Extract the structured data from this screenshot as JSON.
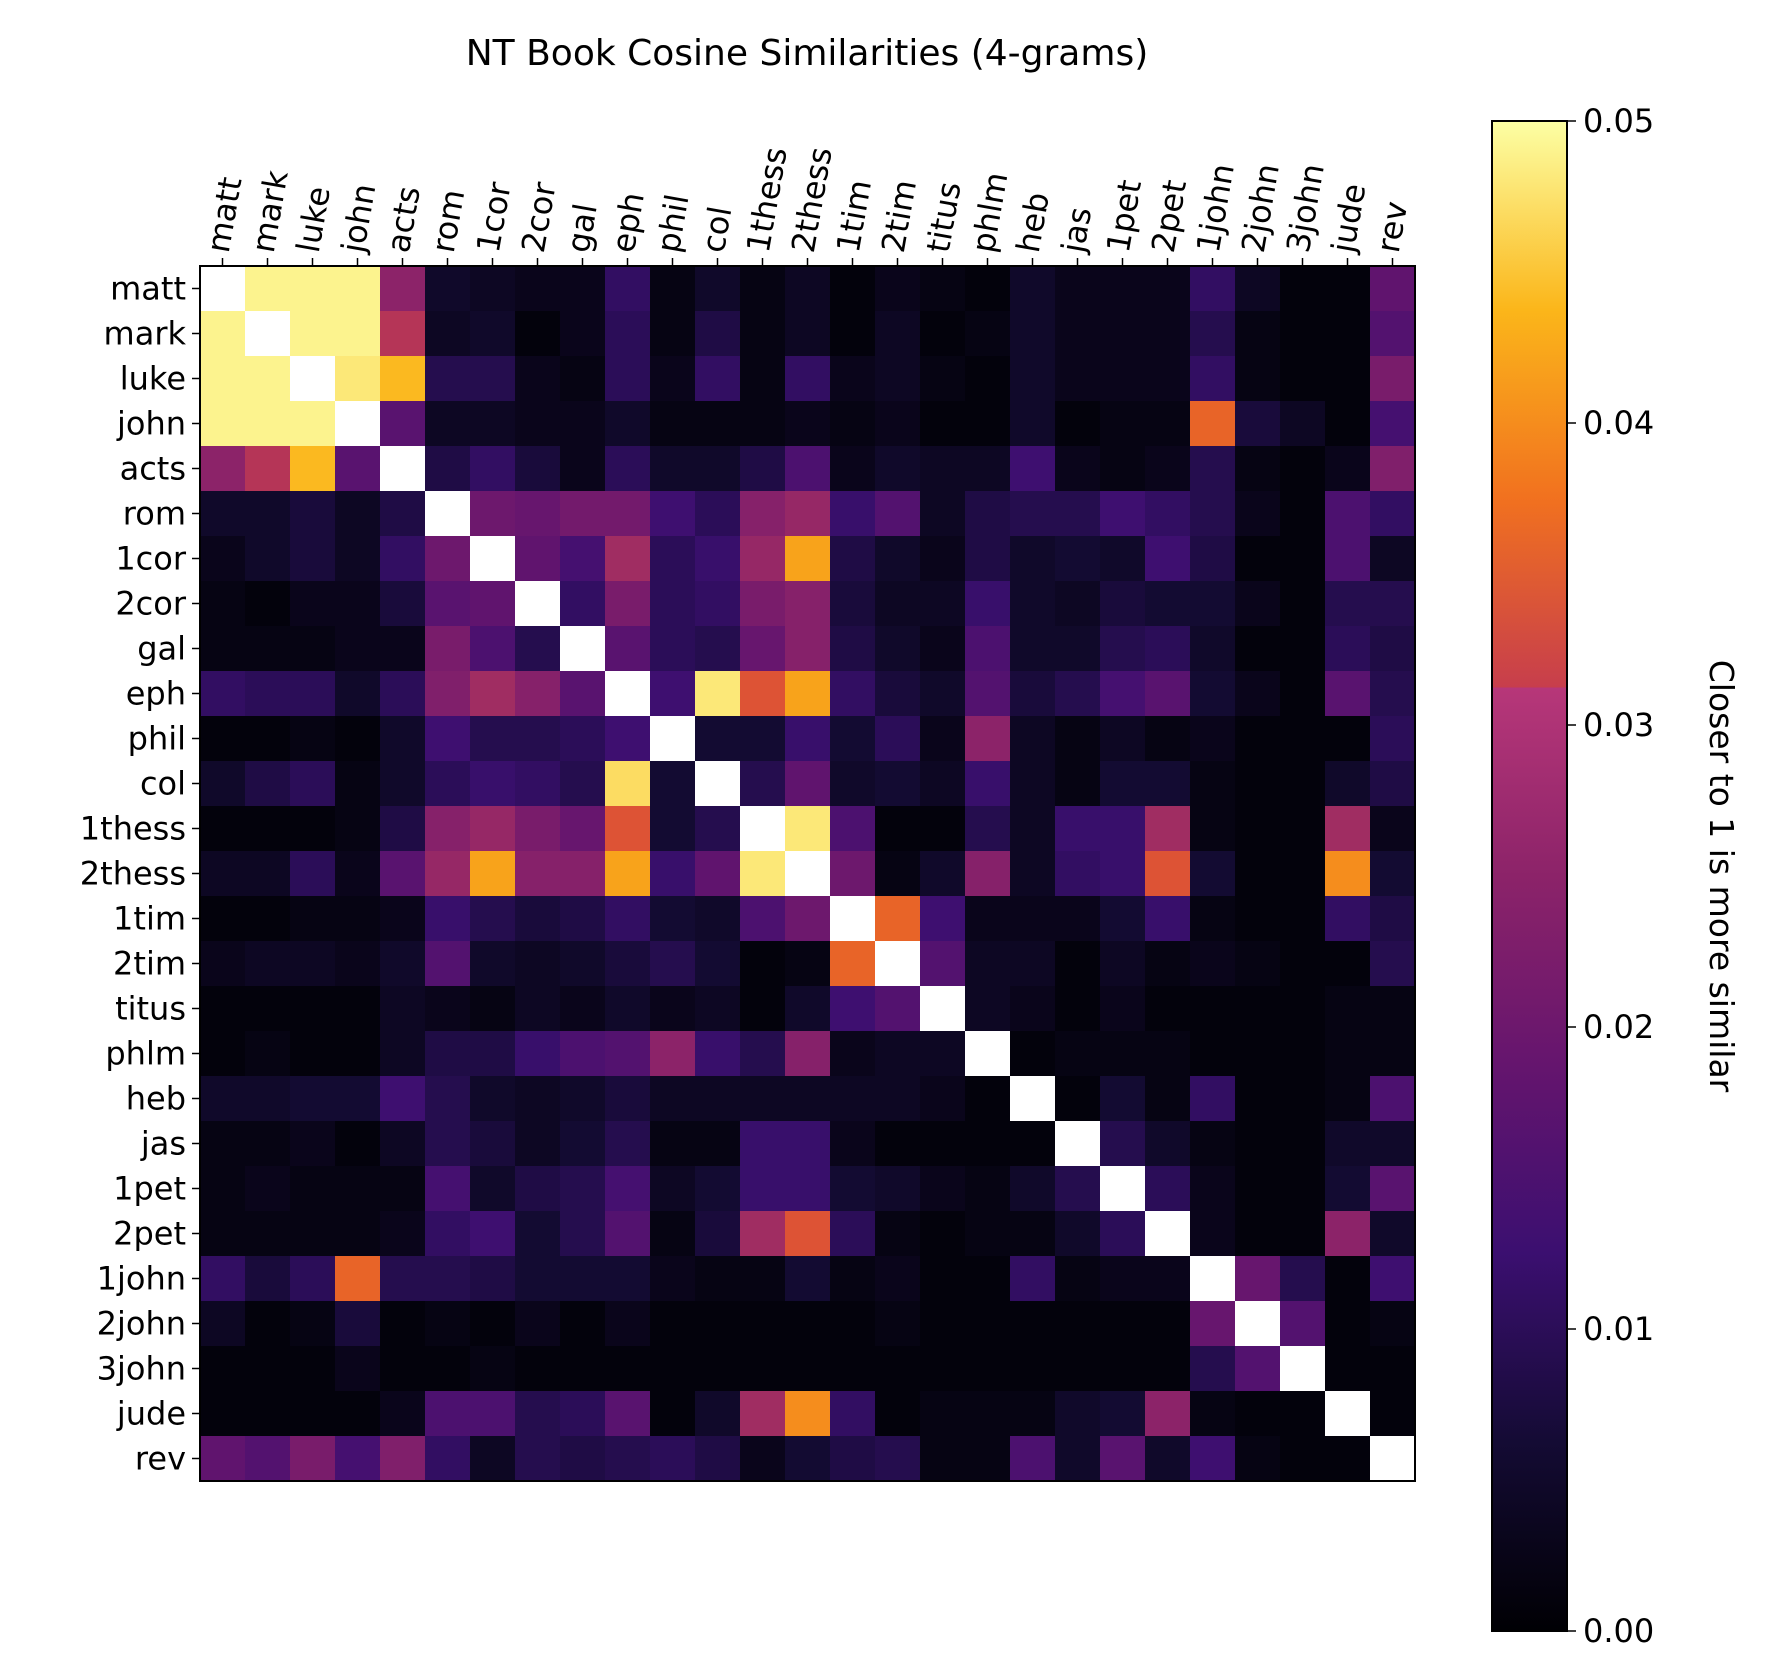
{
  "chart_data": {
    "type": "heatmap",
    "title": "NT Book Cosine Similarities (4-grams)",
    "xlabel": "",
    "ylabel": "",
    "labels": [
      "matt",
      "mark",
      "luke",
      "john",
      "acts",
      "rom",
      "1cor",
      "2cor",
      "gal",
      "eph",
      "phil",
      "col",
      "1thess",
      "2thess",
      "1tim",
      "2tim",
      "titus",
      "phlm",
      "heb",
      "jas",
      "1pet",
      "2pet",
      "1john",
      "2john",
      "3john",
      "jude",
      "rev"
    ],
    "diagonal_value": 1,
    "colorbar": {
      "label": "Closer to 1 is more similar",
      "range": [
        0,
        0.05
      ],
      "ticks": [
        "0.00",
        "0.01",
        "0.02",
        "0.03",
        "0.04",
        "0.05"
      ],
      "colormap": "inferno"
    },
    "values": [
      [
        1,
        0.049,
        0.049,
        0.049,
        0.025,
        0.005,
        0.004,
        0.003,
        0.003,
        0.011,
        0.002,
        0.005,
        0.002,
        0.004,
        0.001,
        0.003,
        0.002,
        0.001,
        0.005,
        0.003,
        0.003,
        0.003,
        0.011,
        0.004,
        0.001,
        0.001,
        0.018
      ],
      [
        0.049,
        1,
        0.049,
        0.049,
        0.029,
        0.004,
        0.005,
        0.001,
        0.003,
        0.01,
        0.002,
        0.008,
        0.002,
        0.004,
        0.001,
        0.004,
        0.001,
        0.002,
        0.005,
        0.003,
        0.003,
        0.003,
        0.009,
        0.002,
        0.001,
        0.001,
        0.016
      ],
      [
        0.049,
        0.049,
        1,
        0.048,
        0.044,
        0.009,
        0.009,
        0.003,
        0.002,
        0.01,
        0.003,
        0.011,
        0.002,
        0.011,
        0.003,
        0.004,
        0.002,
        0.001,
        0.005,
        0.003,
        0.003,
        0.003,
        0.011,
        0.002,
        0.001,
        0.001,
        0.022
      ],
      [
        0.049,
        0.049,
        0.049,
        1,
        0.017,
        0.004,
        0.004,
        0.003,
        0.003,
        0.005,
        0.002,
        0.002,
        0.002,
        0.003,
        0.002,
        0.003,
        0.001,
        0.001,
        0.005,
        0.001,
        0.002,
        0.002,
        0.036,
        0.007,
        0.004,
        0.001,
        0.014
      ],
      [
        0.025,
        0.029,
        0.044,
        0.017,
        1,
        0.008,
        0.011,
        0.007,
        0.003,
        0.01,
        0.005,
        0.005,
        0.008,
        0.015,
        0.003,
        0.005,
        0.004,
        0.004,
        0.013,
        0.003,
        0.002,
        0.003,
        0.009,
        0.002,
        0.001,
        0.003,
        0.023
      ],
      [
        0.005,
        0.005,
        0.007,
        0.004,
        0.008,
        1,
        0.02,
        0.019,
        0.021,
        0.021,
        0.013,
        0.01,
        0.024,
        0.026,
        0.012,
        0.016,
        0.004,
        0.008,
        0.009,
        0.009,
        0.013,
        0.011,
        0.009,
        0.003,
        0.001,
        0.015,
        0.011
      ],
      [
        0.003,
        0.005,
        0.007,
        0.004,
        0.011,
        0.02,
        1,
        0.018,
        0.014,
        0.027,
        0.01,
        0.012,
        0.026,
        0.042,
        0.008,
        0.005,
        0.003,
        0.008,
        0.005,
        0.006,
        0.005,
        0.013,
        0.008,
        0.001,
        0.001,
        0.015,
        0.004
      ],
      [
        0.002,
        0.001,
        0.003,
        0.003,
        0.007,
        0.017,
        0.018,
        1,
        0.011,
        0.022,
        0.01,
        0.011,
        0.022,
        0.024,
        0.007,
        0.004,
        0.004,
        0.012,
        0.005,
        0.004,
        0.007,
        0.006,
        0.006,
        0.003,
        0.001,
        0.009,
        0.009
      ],
      [
        0.002,
        0.002,
        0.002,
        0.003,
        0.003,
        0.022,
        0.015,
        0.009,
        1,
        0.017,
        0.01,
        0.009,
        0.019,
        0.024,
        0.008,
        0.005,
        0.003,
        0.015,
        0.005,
        0.005,
        0.009,
        0.01,
        0.005,
        0.001,
        0.001,
        0.01,
        0.008
      ],
      [
        0.011,
        0.01,
        0.01,
        0.005,
        0.01,
        0.023,
        0.027,
        0.024,
        0.017,
        1,
        0.013,
        0.048,
        0.034,
        0.042,
        0.011,
        0.007,
        0.005,
        0.016,
        0.007,
        0.009,
        0.014,
        0.017,
        0.006,
        0.003,
        0.001,
        0.017,
        0.009
      ],
      [
        0.001,
        0.001,
        0.002,
        0.001,
        0.005,
        0.013,
        0.009,
        0.009,
        0.01,
        0.013,
        1,
        0.006,
        0.006,
        0.012,
        0.006,
        0.01,
        0.003,
        0.025,
        0.004,
        0.002,
        0.004,
        0.002,
        0.003,
        0.001,
        0.001,
        0.001,
        0.01
      ],
      [
        0.005,
        0.008,
        0.01,
        0.002,
        0.005,
        0.01,
        0.012,
        0.011,
        0.009,
        0.047,
        0.006,
        1,
        0.009,
        0.018,
        0.005,
        0.006,
        0.004,
        0.012,
        0.004,
        0.002,
        0.006,
        0.006,
        0.002,
        0.001,
        0.001,
        0.005,
        0.008
      ],
      [
        0.001,
        0.001,
        0.001,
        0.002,
        0.008,
        0.024,
        0.026,
        0.022,
        0.019,
        0.034,
        0.006,
        0.009,
        1,
        0.048,
        0.015,
        0.001,
        0.001,
        0.009,
        0.004,
        0.012,
        0.012,
        0.027,
        0.002,
        0.001,
        0.001,
        0.027,
        0.003
      ],
      [
        0.004,
        0.004,
        0.01,
        0.003,
        0.017,
        0.026,
        0.042,
        0.024,
        0.024,
        0.042,
        0.012,
        0.018,
        0.048,
        1,
        0.02,
        0.002,
        0.005,
        0.024,
        0.004,
        0.011,
        0.012,
        0.034,
        0.006,
        0.001,
        0.001,
        0.04,
        0.006
      ],
      [
        0.001,
        0.001,
        0.002,
        0.002,
        0.003,
        0.012,
        0.009,
        0.007,
        0.008,
        0.011,
        0.006,
        0.005,
        0.015,
        0.02,
        1,
        0.036,
        0.013,
        0.003,
        0.003,
        0.003,
        0.006,
        0.012,
        0.002,
        0.001,
        0.001,
        0.011,
        0.008
      ],
      [
        0.003,
        0.004,
        0.004,
        0.003,
        0.005,
        0.016,
        0.005,
        0.004,
        0.005,
        0.007,
        0.009,
        0.006,
        0.001,
        0.002,
        0.036,
        1,
        0.016,
        0.004,
        0.004,
        0.001,
        0.004,
        0.002,
        0.003,
        0.002,
        0.001,
        0.001,
        0.009
      ],
      [
        0.001,
        0.001,
        0.001,
        0.001,
        0.004,
        0.003,
        0.002,
        0.004,
        0.003,
        0.005,
        0.003,
        0.004,
        0.001,
        0.005,
        0.013,
        0.016,
        1,
        0.004,
        0.003,
        0.001,
        0.003,
        0.001,
        0.001,
        0.001,
        0.001,
        0.002,
        0.002
      ],
      [
        0.001,
        0.002,
        0.001,
        0.001,
        0.004,
        0.008,
        0.008,
        0.012,
        0.015,
        0.016,
        0.025,
        0.012,
        0.009,
        0.024,
        0.003,
        0.004,
        0.004,
        1,
        0.001,
        0.002,
        0.002,
        0.002,
        0.001,
        0.001,
        0.001,
        0.002,
        0.002
      ],
      [
        0.005,
        0.005,
        0.006,
        0.006,
        0.013,
        0.009,
        0.005,
        0.004,
        0.005,
        0.007,
        0.004,
        0.004,
        0.004,
        0.004,
        0.004,
        0.004,
        0.003,
        0.001,
        1,
        0.001,
        0.006,
        0.002,
        0.011,
        0.001,
        0.001,
        0.002,
        0.015
      ],
      [
        0.002,
        0.002,
        0.003,
        0.001,
        0.004,
        0.009,
        0.007,
        0.004,
        0.006,
        0.009,
        0.002,
        0.002,
        0.012,
        0.012,
        0.003,
        0.001,
        0.001,
        0.001,
        0.001,
        1,
        0.009,
        0.005,
        0.002,
        0.001,
        0.001,
        0.005,
        0.005
      ],
      [
        0.002,
        0.003,
        0.002,
        0.002,
        0.002,
        0.014,
        0.005,
        0.008,
        0.009,
        0.014,
        0.004,
        0.006,
        0.012,
        0.012,
        0.006,
        0.005,
        0.003,
        0.002,
        0.005,
        0.009,
        1,
        0.01,
        0.003,
        0.001,
        0.001,
        0.006,
        0.017
      ],
      [
        0.002,
        0.002,
        0.002,
        0.002,
        0.003,
        0.011,
        0.013,
        0.006,
        0.009,
        0.016,
        0.002,
        0.007,
        0.027,
        0.034,
        0.01,
        0.002,
        0.001,
        0.002,
        0.002,
        0.005,
        0.01,
        1,
        0.003,
        0.001,
        0.001,
        0.025,
        0.005
      ],
      [
        0.011,
        0.007,
        0.01,
        0.036,
        0.009,
        0.009,
        0.008,
        0.006,
        0.006,
        0.006,
        0.003,
        0.002,
        0.002,
        0.006,
        0.002,
        0.003,
        0.001,
        0.001,
        0.011,
        0.002,
        0.003,
        0.003,
        1,
        0.019,
        0.009,
        0.001,
        0.013
      ],
      [
        0.004,
        0.001,
        0.002,
        0.007,
        0.001,
        0.002,
        0.001,
        0.003,
        0.001,
        0.003,
        0.001,
        0.001,
        0.001,
        0.001,
        0.001,
        0.002,
        0.001,
        0.001,
        0.001,
        0.001,
        0.001,
        0.001,
        0.019,
        1,
        0.016,
        0.001,
        0.002
      ],
      [
        0.001,
        0.001,
        0.001,
        0.003,
        0.001,
        0.001,
        0.002,
        0.001,
        0.001,
        0.001,
        0.001,
        0.001,
        0.001,
        0.001,
        0.001,
        0.001,
        0.001,
        0.001,
        0.001,
        0.001,
        0.001,
        0.001,
        0.009,
        0.016,
        1,
        0.001,
        0.001
      ],
      [
        0.001,
        0.001,
        0.001,
        0.001,
        0.003,
        0.015,
        0.015,
        0.009,
        0.01,
        0.017,
        0.001,
        0.005,
        0.027,
        0.04,
        0.011,
        0.001,
        0.002,
        0.002,
        0.002,
        0.005,
        0.006,
        0.025,
        0.002,
        0.001,
        0.001,
        1,
        0.001
      ],
      [
        0.018,
        0.016,
        0.022,
        0.014,
        0.023,
        0.011,
        0.004,
        0.009,
        0.008,
        0.009,
        0.01,
        0.008,
        0.003,
        0.006,
        0.008,
        0.009,
        0.002,
        0.002,
        0.015,
        0.005,
        0.017,
        0.005,
        0.013,
        0.002,
        0.001,
        0.001,
        1
      ]
    ]
  }
}
